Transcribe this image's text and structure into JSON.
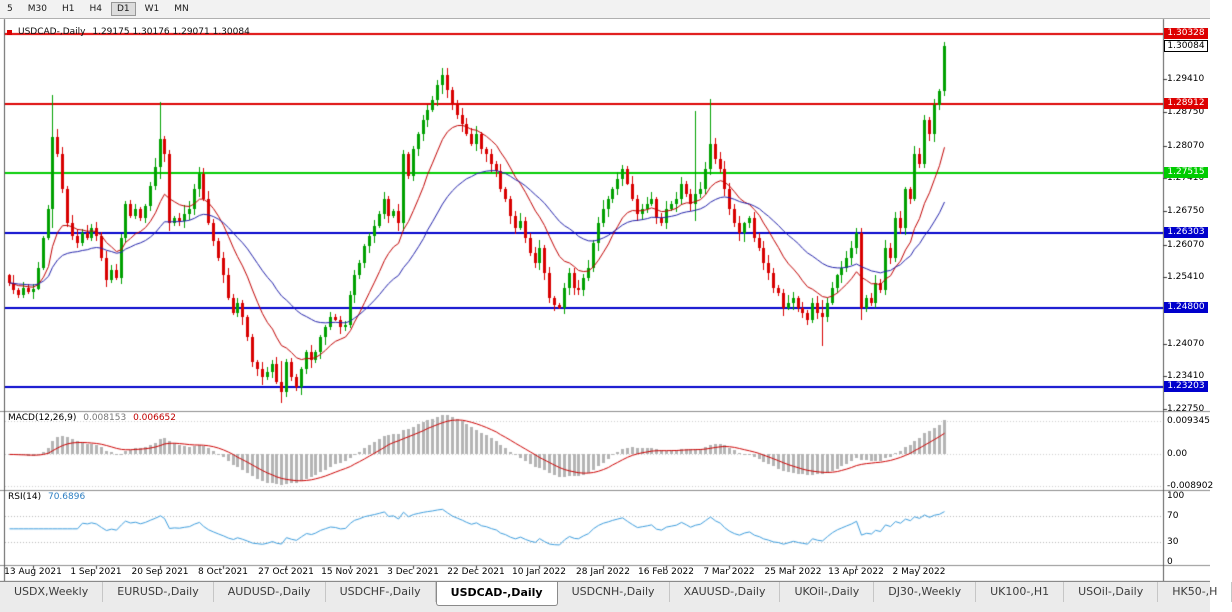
{
  "toolbar": {
    "items": [
      "5",
      "M30",
      "H1",
      "H4",
      "D1",
      "W1",
      "MN"
    ],
    "active": "D1"
  },
  "chart": {
    "title_symbol": "USDCAD-,Daily",
    "title_ohlc": "1.29175 1.30176 1.29071 1.30084"
  },
  "indicators": {
    "macd_name": "MACD(12,26,9)",
    "macd_main": "0.008153",
    "macd_signal": "0.006652",
    "rsi_name": "RSI(14)",
    "rsi_value": "70.6896"
  },
  "chart_data": {
    "type": "candlestick_with_indicators",
    "title": "USDCAD-,Daily",
    "last_candle": {
      "open": 1.29175,
      "high": 1.30176,
      "low": 1.29071,
      "close": 1.30084
    },
    "first_open": 1.2545,
    "closes": [
      1.253,
      1.2515,
      1.2505,
      1.252,
      1.2512,
      1.2518,
      1.256,
      1.262,
      1.268,
      1.2825,
      1.279,
      1.272,
      1.265,
      1.2625,
      1.261,
      1.263,
      1.262,
      1.264,
      1.2625,
      1.258,
      1.2535,
      1.2555,
      1.254,
      1.262,
      1.269,
      1.2665,
      1.268,
      1.266,
      1.2685,
      1.2725,
      1.2765,
      1.282,
      1.279,
      1.265,
      1.266,
      1.2655,
      1.267,
      1.268,
      1.272,
      1.275,
      1.27,
      1.265,
      1.2615,
      1.258,
      1.2545,
      1.25,
      1.247,
      1.249,
      1.246,
      1.242,
      1.237,
      1.2355,
      1.234,
      1.235,
      1.2365,
      1.233,
      1.231,
      1.237,
      1.234,
      1.232,
      1.2355,
      1.239,
      1.2375,
      1.239,
      1.242,
      1.244,
      1.246,
      1.2455,
      1.244,
      1.2445,
      1.2505,
      1.2545,
      1.257,
      1.2605,
      1.2625,
      1.2645,
      1.267,
      1.27,
      1.2665,
      1.2675,
      1.265,
      1.279,
      1.2745,
      1.28,
      1.283,
      1.286,
      1.288,
      1.29,
      1.293,
      1.295,
      1.292,
      1.289,
      1.287,
      1.285,
      1.283,
      1.281,
      1.283,
      1.28,
      1.279,
      1.277,
      1.2755,
      1.272,
      1.27,
      1.2665,
      1.264,
      1.2655,
      1.262,
      1.259,
      1.257,
      1.26,
      1.255,
      1.25,
      1.2485,
      1.248,
      1.252,
      1.255,
      1.252,
      1.2515,
      1.254,
      1.256,
      1.261,
      1.265,
      1.268,
      1.27,
      1.272,
      1.274,
      1.276,
      1.273,
      1.27,
      1.267,
      1.268,
      1.269,
      1.27,
      1.266,
      1.265,
      1.268,
      1.269,
      1.27,
      1.273,
      1.271,
      1.269,
      1.271,
      1.272,
      1.276,
      1.281,
      1.278,
      1.276,
      1.272,
      1.268,
      1.265,
      1.263,
      1.265,
      1.266,
      1.262,
      1.26,
      1.257,
      1.255,
      1.252,
      1.251,
      1.248,
      1.249,
      1.25,
      1.248,
      1.247,
      1.2455,
      1.249,
      1.247,
      1.246,
      1.249,
      1.252,
      1.2545,
      1.256,
      1.258,
      1.26,
      1.263,
      1.248,
      1.25,
      1.249,
      1.253,
      1.2515,
      1.26,
      1.258,
      1.266,
      1.264,
      1.272,
      1.27,
      1.279,
      1.277,
      1.286,
      1.283,
      1.289,
      1.2917,
      1.30084
    ],
    "wick_overrides": {
      "9": [
        1.291,
        1.264
      ],
      "31": [
        1.2896,
        1.274
      ],
      "56": [
        1.2372,
        1.2288
      ],
      "89": [
        1.2964,
        1.2912
      ],
      "141": [
        1.2877,
        1.2655
      ],
      "144": [
        1.2901,
        1.2748
      ],
      "167": [
        1.2495,
        1.2403
      ],
      "175": [
        1.264,
        1.2455
      ]
    },
    "price_axis": {
      "ymax": 1.30611,
      "ymin": 1.2275,
      "ticks": [
        {
          "v": 1.2941,
          "label": "1.29410"
        },
        {
          "v": 1.2875,
          "label": "1.28750"
        },
        {
          "v": 1.2807,
          "label": "1.28070"
        },
        {
          "v": 1.2741,
          "label": "1.27410"
        },
        {
          "v": 1.2675,
          "label": "1.26750"
        },
        {
          "v": 1.2607,
          "label": "1.26070"
        },
        {
          "v": 1.2541,
          "label": "1.25410"
        },
        {
          "v": 1.2407,
          "label": "1.24070"
        },
        {
          "v": 1.2341,
          "label": "1.23410"
        },
        {
          "v": 1.2275,
          "label": "1.22750"
        }
      ]
    },
    "current_price": {
      "v": 1.30084,
      "label": "1.30084"
    },
    "sr_lines": [
      {
        "v": 1.30328,
        "label": "1.30328",
        "color": "#dd0000"
      },
      {
        "v": 1.28912,
        "label": "1.28912",
        "color": "#dd0000"
      },
      {
        "v": 1.27515,
        "label": "1.27515",
        "color": "#00cc00"
      },
      {
        "v": 1.26303,
        "label": "1.26303",
        "color": "#0000cc"
      },
      {
        "v": 1.248,
        "label": "1.24800",
        "color": "#0000cc"
      },
      {
        "v": 1.23203,
        "label": "1.23203",
        "color": "#0000cc"
      }
    ],
    "ma_fast_period": 12,
    "ma_slow_period": 30,
    "macd": {
      "fast": 12,
      "slow": 26,
      "signal_period": 9,
      "ticks": [
        {
          "v": 0.009345,
          "label": "0.009345"
        },
        {
          "v": 0,
          "label": "0.00"
        },
        {
          "v": -0.008902,
          "label": "-0.008902"
        }
      ]
    },
    "rsi": {
      "period": 14,
      "ymax": 107,
      "ymin": -3,
      "levels": [
        70,
        30
      ],
      "ticks": [
        {
          "v": 100,
          "label": "100"
        },
        {
          "v": 70,
          "label": "70"
        },
        {
          "v": 30,
          "label": "30"
        },
        {
          "v": 0,
          "label": "0"
        }
      ]
    },
    "dates": [
      {
        "i": 5,
        "label": "13 Aug 2021"
      },
      {
        "i": 18,
        "label": "1 Sep 2021"
      },
      {
        "i": 31,
        "label": "20 Sep 2021"
      },
      {
        "i": 44,
        "label": "8 Oct 2021"
      },
      {
        "i": 57,
        "label": "27 Oct 2021"
      },
      {
        "i": 70,
        "label": "15 Nov 2021"
      },
      {
        "i": 83,
        "label": "3 Dec 2021"
      },
      {
        "i": 96,
        "label": "22 Dec 2021"
      },
      {
        "i": 109,
        "label": "10 Jan 2022"
      },
      {
        "i": 122,
        "label": "28 Jan 2022"
      },
      {
        "i": 135,
        "label": "16 Feb 2022"
      },
      {
        "i": 148,
        "label": "7 Mar 2022"
      },
      {
        "i": 161,
        "label": "25 Mar 2022"
      },
      {
        "i": 174,
        "label": "13 Apr 2022"
      },
      {
        "i": 187,
        "label": "2 May 2022"
      }
    ],
    "colors": {
      "up": "#00a000",
      "down": "#d80000",
      "ma_fast": "#c00000",
      "ma_slow": "#2222aa",
      "macd_hist": "#b4b4b4",
      "macd_signal": "#cc0000",
      "rsi_line": "#3c9cdc"
    }
  },
  "tabs": {
    "items": [
      "USDX,Weekly",
      "EURUSD-,Daily",
      "AUDUSD-,Daily",
      "USDCHF-,Daily",
      "USDCAD-,Daily",
      "USDCNH-,Daily",
      "XAUUSD-,Daily",
      "UKOil-,Daily",
      "DJ30-,Weekly",
      "UK100-,H1",
      "USOil-,Daily",
      "HK50-,H"
    ],
    "active_index": 4
  }
}
